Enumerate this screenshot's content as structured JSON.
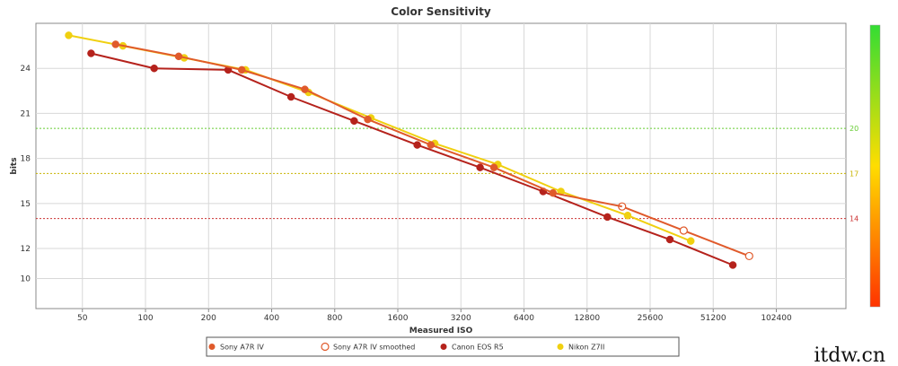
{
  "chart_data": {
    "type": "line",
    "title": "Color Sensitivity",
    "xlabel": "Measured ISO",
    "ylabel": "bits",
    "x_scale": "log2",
    "x_ticks": [
      "50",
      "100",
      "200",
      "400",
      "800",
      "1600",
      "3200",
      "6400",
      "12800",
      "25600",
      "51200",
      "102400"
    ],
    "y_ticks": [
      "10",
      "12",
      "15",
      "18",
      "21",
      "24"
    ],
    "xlim": [
      30,
      220000
    ],
    "ylim": [
      8,
      27
    ],
    "reference_lines": [
      {
        "value": 20,
        "label": "20",
        "color": "#66cc33"
      },
      {
        "value": 17,
        "label": "17",
        "color": "#c8b400"
      },
      {
        "value": 14,
        "label": "14",
        "color": "#cc3333"
      }
    ],
    "legend_position": "bottom",
    "series": [
      {
        "name": "Sony A7R IV",
        "color": "#e05a2b",
        "marker": "filled",
        "points": [
          [
            72,
            25.6
          ],
          [
            144,
            24.8
          ],
          [
            288,
            23.9
          ],
          [
            576,
            22.6
          ],
          [
            1150,
            20.6
          ],
          [
            2300,
            18.9
          ],
          [
            4600,
            17.4
          ],
          [
            8800,
            15.7
          ]
        ]
      },
      {
        "name": "Sony A7R IV smoothed",
        "color": "#e05a2b",
        "marker": "hollow",
        "points": [
          [
            18800,
            14.8
          ],
          [
            37000,
            13.2
          ],
          [
            76000,
            11.5
          ]
        ]
      },
      {
        "name": "Canon EOS R5",
        "color": "#b5221c",
        "marker": "filled",
        "points": [
          [
            55,
            25.0
          ],
          [
            110,
            24.0
          ],
          [
            248,
            23.9
          ],
          [
            495,
            22.1
          ],
          [
            990,
            20.5
          ],
          [
            1980,
            18.9
          ],
          [
            3950,
            17.4
          ],
          [
            7900,
            15.8
          ],
          [
            16000,
            14.1
          ],
          [
            31800,
            12.6
          ],
          [
            63500,
            10.9
          ]
        ]
      },
      {
        "name": "Nikon Z7II",
        "color": "#f0d010",
        "marker": "filled",
        "points": [
          [
            43,
            26.2
          ],
          [
            78,
            25.5
          ],
          [
            153,
            24.7
          ],
          [
            300,
            23.9
          ],
          [
            600,
            22.4
          ],
          [
            1190,
            20.7
          ],
          [
            2400,
            19.0
          ],
          [
            4800,
            17.6
          ],
          [
            9600,
            15.8
          ],
          [
            20000,
            14.2
          ],
          [
            40000,
            12.5
          ]
        ]
      }
    ],
    "color_scale": {
      "top_color": "#33dd33",
      "mid_color": "#ffdd00",
      "bottom_color": "#ff3300"
    }
  },
  "watermark": "itdw.cn"
}
